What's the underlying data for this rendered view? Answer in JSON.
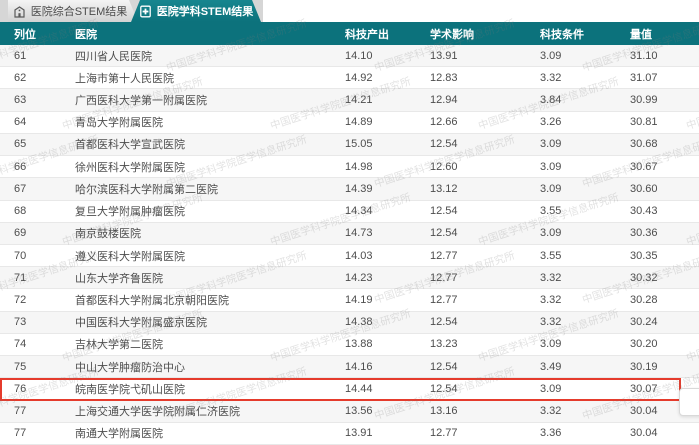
{
  "tabs": [
    {
      "label": "医院综合STEM结果",
      "icon": "hospital-building-icon",
      "active": false
    },
    {
      "label": "医院学科STEM结果",
      "icon": "document-plus-icon",
      "active": true
    }
  ],
  "table": {
    "columns": [
      "列位",
      "医院",
      "科技产出",
      "学术影响",
      "科技条件",
      "量值"
    ],
    "rows": [
      {
        "rank": "61",
        "hospital": "四川省人民医院",
        "output": "14.10",
        "impact": "13.91",
        "condition": "3.09",
        "value": "31.10",
        "highlighted": false
      },
      {
        "rank": "62",
        "hospital": "上海市第十人民医院",
        "output": "14.92",
        "impact": "12.83",
        "condition": "3.32",
        "value": "31.07",
        "highlighted": false
      },
      {
        "rank": "63",
        "hospital": "广西医科大学第一附属医院",
        "output": "14.21",
        "impact": "12.94",
        "condition": "3.84",
        "value": "30.99",
        "highlighted": false
      },
      {
        "rank": "64",
        "hospital": "青岛大学附属医院",
        "output": "14.89",
        "impact": "12.66",
        "condition": "3.26",
        "value": "30.81",
        "highlighted": false
      },
      {
        "rank": "65",
        "hospital": "首都医科大学宣武医院",
        "output": "15.05",
        "impact": "12.54",
        "condition": "3.09",
        "value": "30.68",
        "highlighted": false
      },
      {
        "rank": "66",
        "hospital": "徐州医科大学附属医院",
        "output": "14.98",
        "impact": "12.60",
        "condition": "3.09",
        "value": "30.67",
        "highlighted": false
      },
      {
        "rank": "67",
        "hospital": "哈尔滨医科大学附属第二医院",
        "output": "14.39",
        "impact": "13.12",
        "condition": "3.09",
        "value": "30.60",
        "highlighted": false
      },
      {
        "rank": "68",
        "hospital": "复旦大学附属肿瘤医院",
        "output": "14.34",
        "impact": "12.54",
        "condition": "3.55",
        "value": "30.43",
        "highlighted": false
      },
      {
        "rank": "69",
        "hospital": "南京鼓楼医院",
        "output": "14.73",
        "impact": "12.54",
        "condition": "3.09",
        "value": "30.36",
        "highlighted": false
      },
      {
        "rank": "70",
        "hospital": "遵义医科大学附属医院",
        "output": "14.03",
        "impact": "12.77",
        "condition": "3.55",
        "value": "30.35",
        "highlighted": false
      },
      {
        "rank": "71",
        "hospital": "山东大学齐鲁医院",
        "output": "14.23",
        "impact": "12.77",
        "condition": "3.32",
        "value": "30.32",
        "highlighted": false
      },
      {
        "rank": "72",
        "hospital": "首都医科大学附属北京朝阳医院",
        "output": "14.19",
        "impact": "12.77",
        "condition": "3.32",
        "value": "30.28",
        "highlighted": false
      },
      {
        "rank": "73",
        "hospital": "中国医科大学附属盛京医院",
        "output": "14.38",
        "impact": "12.54",
        "condition": "3.32",
        "value": "30.24",
        "highlighted": false
      },
      {
        "rank": "74",
        "hospital": "吉林大学第二医院",
        "output": "13.88",
        "impact": "13.23",
        "condition": "3.09",
        "value": "30.20",
        "highlighted": false
      },
      {
        "rank": "75",
        "hospital": "中山大学肿瘤防治中心",
        "output": "14.16",
        "impact": "12.54",
        "condition": "3.49",
        "value": "30.19",
        "highlighted": false
      },
      {
        "rank": "76",
        "hospital": "皖南医学院弋矶山医院",
        "output": "14.44",
        "impact": "12.54",
        "condition": "3.09",
        "value": "30.07",
        "highlighted": true
      },
      {
        "rank": "77",
        "hospital": "上海交通大学医学院附属仁济医院",
        "output": "13.56",
        "impact": "13.16",
        "condition": "3.32",
        "value": "30.04",
        "highlighted": false
      },
      {
        "rank": "77",
        "hospital": "南通大学附属医院",
        "output": "13.91",
        "impact": "12.77",
        "condition": "3.36",
        "value": "30.04",
        "highlighted": false
      }
    ]
  },
  "watermark": {
    "text": "中国医学科学院医学信息研究所"
  },
  "colors": {
    "teal": "#0c727c",
    "highlight_red": "#e53b2c",
    "tabbar_gray": "#d6d6d6"
  }
}
